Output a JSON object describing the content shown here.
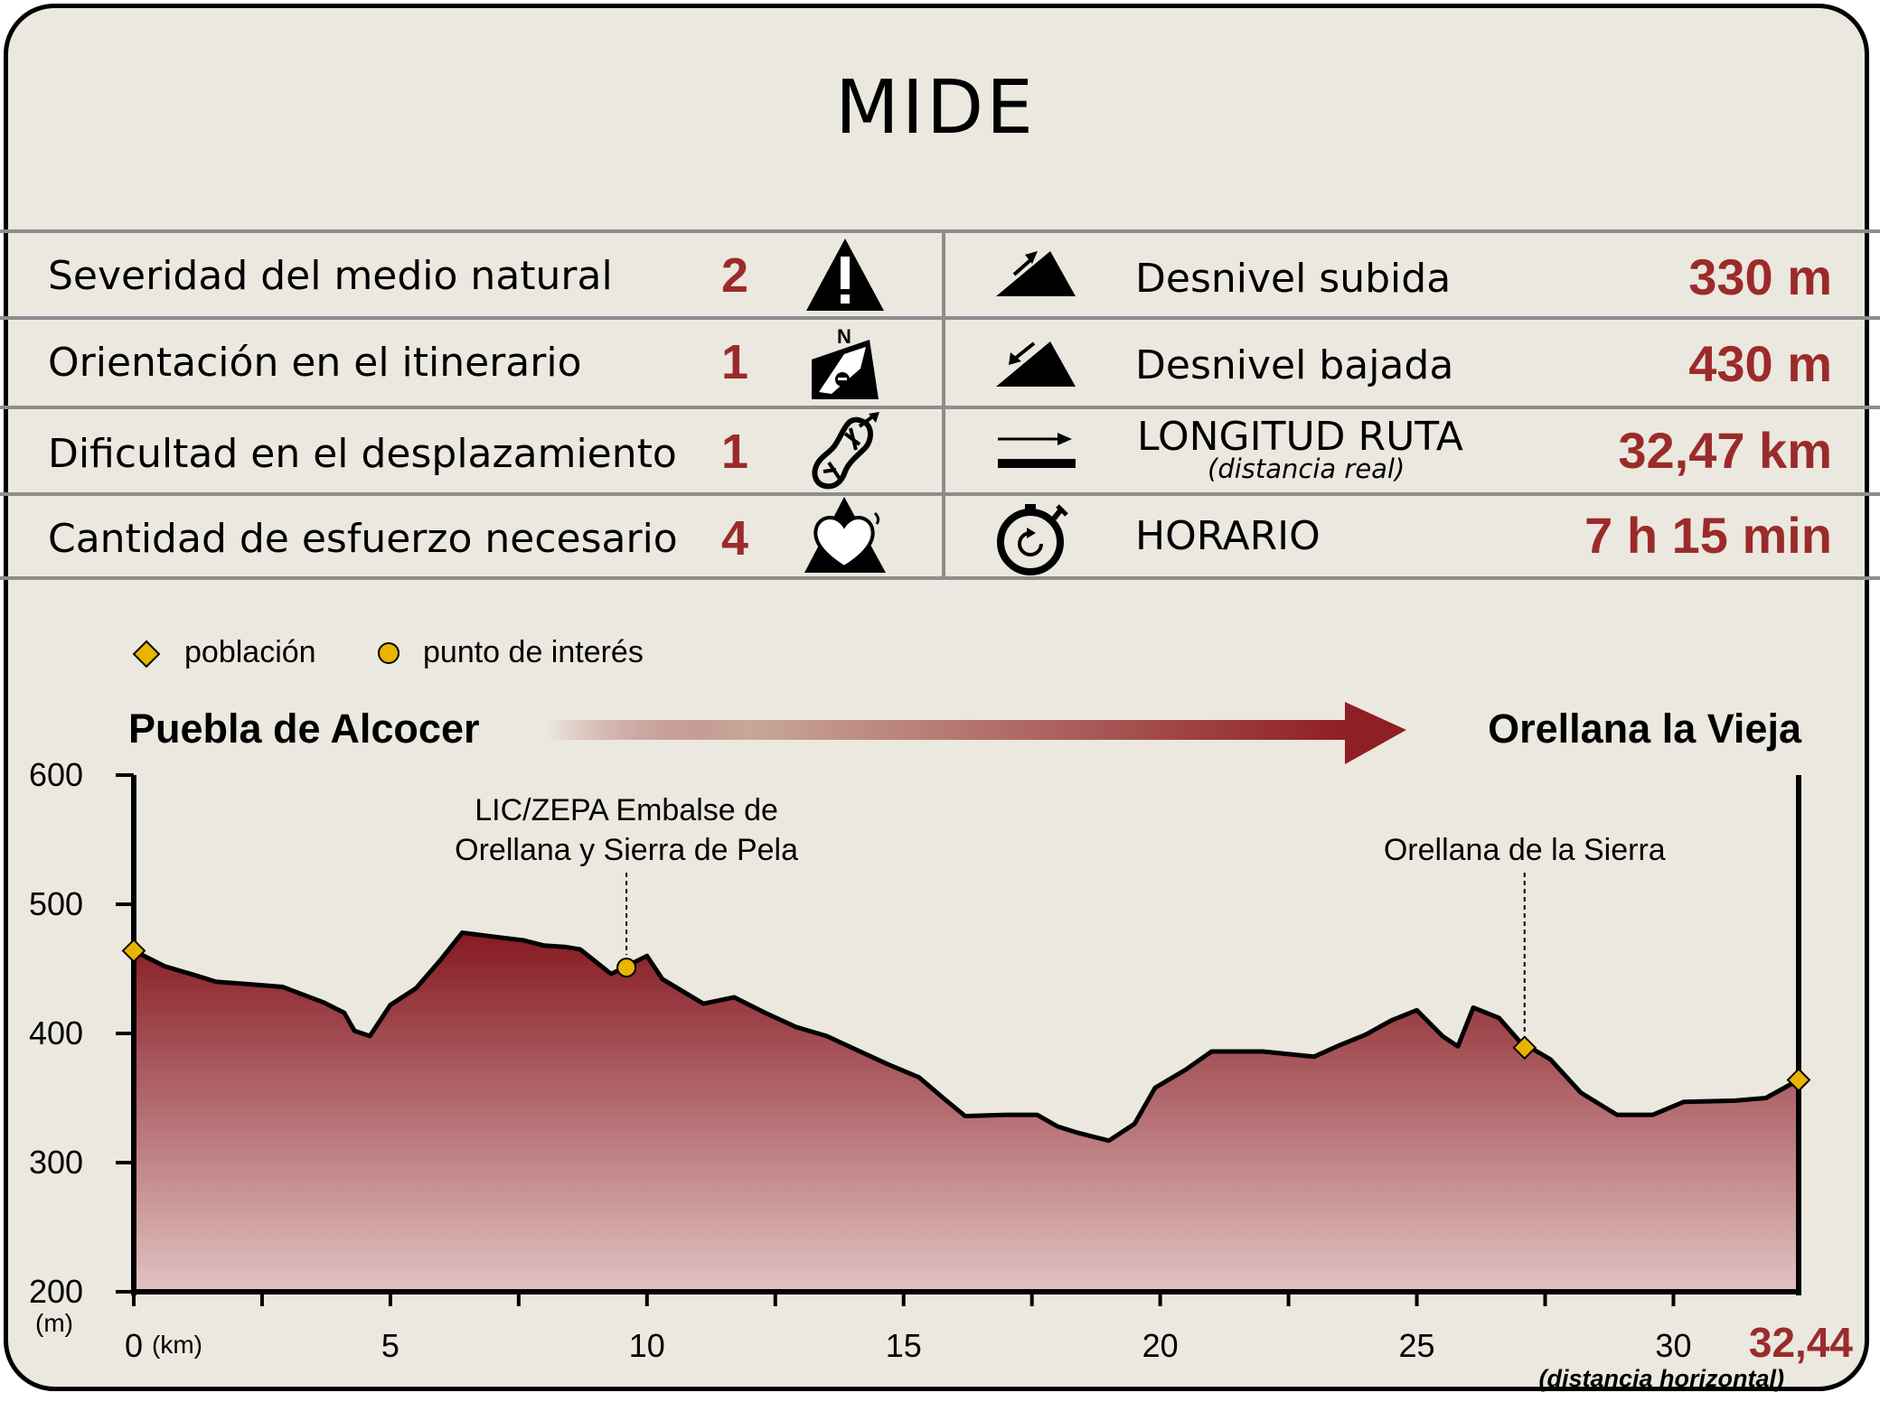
{
  "title": "MIDE",
  "mide_rows": [
    {
      "label": "Severidad del medio natural",
      "value": "2",
      "icon": "warning-mountain-icon"
    },
    {
      "label": "Orientación en el itinerario",
      "value": "1",
      "icon": "compass-signpost-icon"
    },
    {
      "label": "Dificultad en el desplazamiento",
      "value": "1",
      "icon": "boot-sole-icon"
    },
    {
      "label": "Cantidad de esfuerzo necesario",
      "value": "4",
      "icon": "heart-mountain-icon"
    }
  ],
  "route_rows": [
    {
      "label": "Desnivel subida",
      "value": "330 m",
      "icon": "slope-up-icon"
    },
    {
      "label": "Desnivel bajada",
      "value": "430 m",
      "icon": "slope-down-icon"
    },
    {
      "label": "LONGITUD RUTA",
      "sublabel": "(distancia real)",
      "value": "32,47 km",
      "icon": "distance-arrow-icon"
    },
    {
      "label": "HORARIO",
      "value": "7 h 15 min",
      "icon": "stopwatch-icon"
    }
  ],
  "legend": [
    {
      "label": "población",
      "marker": "diamond"
    },
    {
      "label": "punto de interés",
      "marker": "circle"
    }
  ],
  "colors": {
    "accent": "#9b2b2b",
    "marker": "#e8b400",
    "panel": "#ebe8df"
  },
  "chart_data": {
    "type": "area",
    "start_label": "Puebla de Alcocer",
    "end_label": "Orellana la Vieja",
    "xlabel": "(km)",
    "ylabel": "(m)",
    "x_end_label": "32,44",
    "x_end_note": "(distancia horizontal)",
    "xlim": [
      0,
      32.44
    ],
    "ylim": [
      200,
      600
    ],
    "xticks": [
      0,
      5,
      10,
      15,
      20,
      25,
      30
    ],
    "xtick_labels": [
      "0",
      "5",
      "10",
      "15",
      "20",
      "25",
      "30"
    ],
    "yticks": [
      200,
      300,
      400,
      500,
      600
    ],
    "ytick_labels": [
      "200",
      "300",
      "400",
      "500",
      "600"
    ],
    "grid": false,
    "profile": [
      [
        0,
        464
      ],
      [
        0.6,
        452
      ],
      [
        1.2,
        445
      ],
      [
        1.6,
        440
      ],
      [
        2.3,
        438
      ],
      [
        2.9,
        436
      ],
      [
        3.1,
        433
      ],
      [
        3.7,
        424
      ],
      [
        4.1,
        416
      ],
      [
        4.3,
        402
      ],
      [
        4.6,
        398
      ],
      [
        5.0,
        422
      ],
      [
        5.5,
        435
      ],
      [
        6.0,
        458
      ],
      [
        6.4,
        478
      ],
      [
        7.0,
        475
      ],
      [
        7.6,
        472
      ],
      [
        8.0,
        468
      ],
      [
        8.4,
        467
      ],
      [
        8.7,
        465
      ],
      [
        9.3,
        446
      ],
      [
        9.6,
        452
      ],
      [
        10.0,
        460
      ],
      [
        10.3,
        442
      ],
      [
        11.1,
        423
      ],
      [
        11.7,
        428
      ],
      [
        12.3,
        416
      ],
      [
        12.9,
        405
      ],
      [
        13.5,
        398
      ],
      [
        14.1,
        387
      ],
      [
        14.7,
        376
      ],
      [
        15.3,
        366
      ],
      [
        15.8,
        349
      ],
      [
        16.2,
        336
      ],
      [
        17.0,
        337
      ],
      [
        17.6,
        337
      ],
      [
        18.0,
        328
      ],
      [
        18.4,
        323
      ],
      [
        18.7,
        320
      ],
      [
        19.0,
        317
      ],
      [
        19.5,
        330
      ],
      [
        19.9,
        358
      ],
      [
        20.5,
        372
      ],
      [
        21.0,
        386
      ],
      [
        22.0,
        386
      ],
      [
        23.0,
        382
      ],
      [
        23.5,
        391
      ],
      [
        24.0,
        399
      ],
      [
        24.5,
        410
      ],
      [
        25.0,
        418
      ],
      [
        25.5,
        398
      ],
      [
        25.8,
        390
      ],
      [
        26.1,
        420
      ],
      [
        26.6,
        412
      ],
      [
        27.0,
        394
      ],
      [
        27.6,
        380
      ],
      [
        28.2,
        354
      ],
      [
        28.9,
        337
      ],
      [
        29.6,
        337
      ],
      [
        30.2,
        347
      ],
      [
        31.2,
        348
      ],
      [
        31.8,
        350
      ],
      [
        32.44,
        364
      ]
    ],
    "towns": [
      {
        "name": "Puebla de Alcocer",
        "x": 0,
        "y": 464
      },
      {
        "name": "Orellana de la Sierra",
        "x": 27.1,
        "y": 389
      },
      {
        "name": "Orellana la Vieja",
        "x": 32.44,
        "y": 364
      }
    ],
    "points_of_interest": [
      {
        "name": "LIC/ZEPA Embalse de Orellana y Sierra de Pela",
        "x": 9.6,
        "y": 451
      }
    ],
    "annotations": [
      {
        "lines": [
          "LIC/ZEPA Embalse de",
          "Orellana y Sierra de Pela"
        ],
        "x": 9.6,
        "y": 451
      },
      {
        "lines": [
          "Orellana de la Sierra"
        ],
        "x": 27.1,
        "y": 389
      }
    ]
  }
}
